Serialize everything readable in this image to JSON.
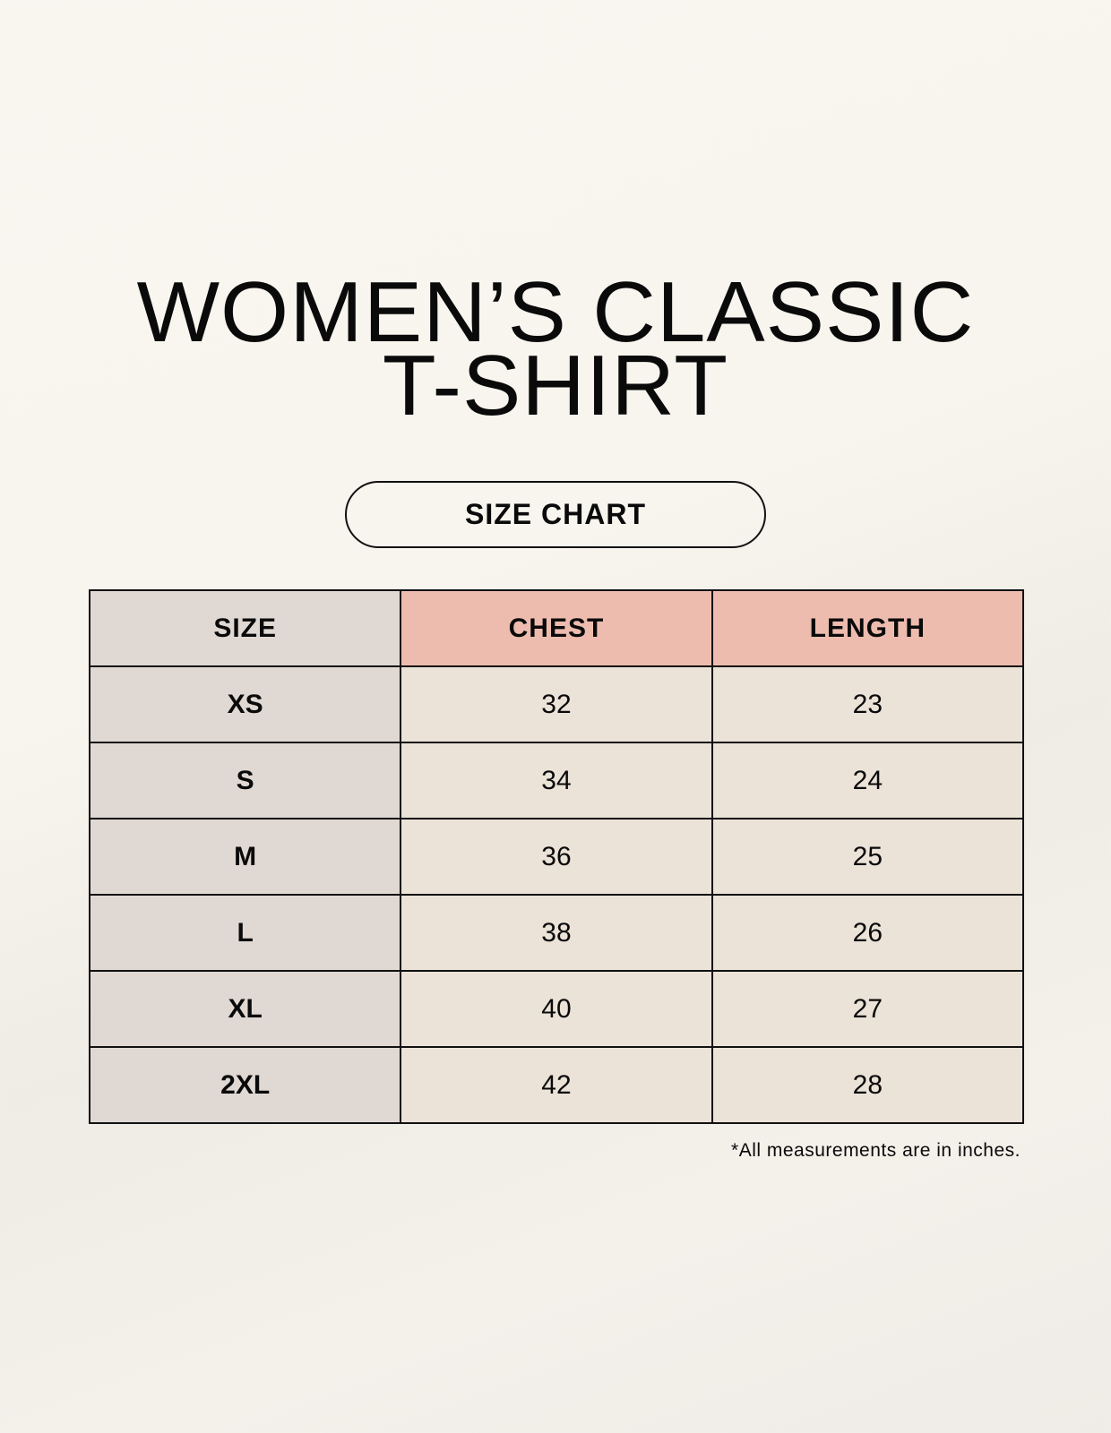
{
  "title": {
    "line1": "WOMEN’S CLASSIC",
    "line2": "T-SHIRT"
  },
  "badge": "SIZE CHART",
  "table": {
    "headers": [
      "SIZE",
      "CHEST",
      "LENGTH"
    ],
    "rows": [
      [
        "XS",
        "32",
        "23"
      ],
      [
        "S",
        "34",
        "24"
      ],
      [
        "M",
        "36",
        "25"
      ],
      [
        "L",
        "38",
        "26"
      ],
      [
        "XL",
        "40",
        "27"
      ],
      [
        "2XL",
        "42",
        "28"
      ]
    ]
  },
  "note": "*All measurements are in inches.",
  "colors": {
    "size_column": "#e0d8d3",
    "header_accent": "#edbcae",
    "value_cells": "#ebe2d8"
  }
}
